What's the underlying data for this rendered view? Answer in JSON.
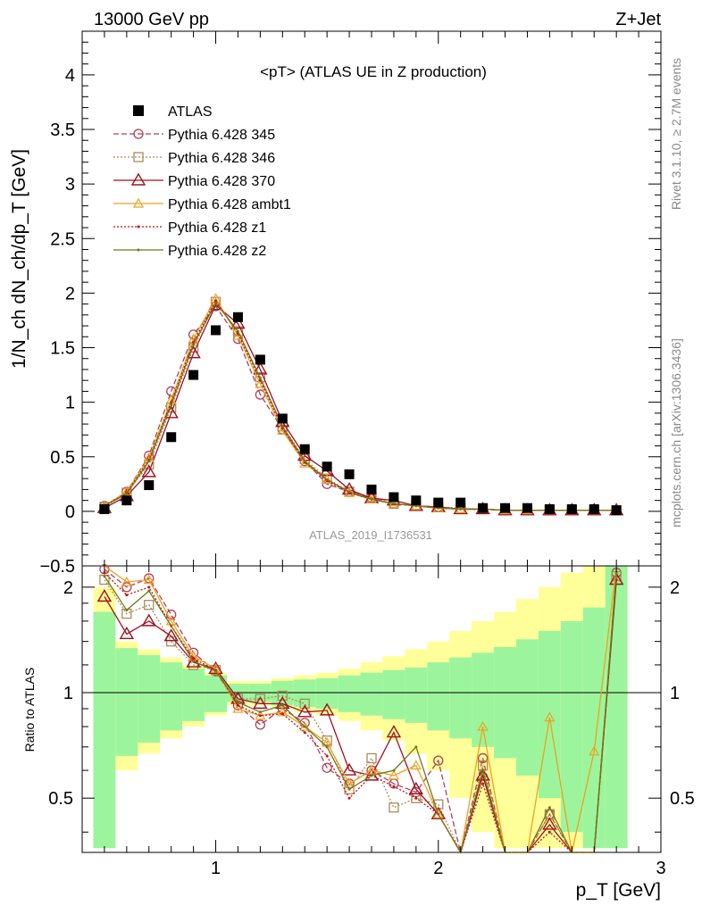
{
  "header": {
    "left": "13000 GeV pp",
    "right": "Z+Jet"
  },
  "side_labels": {
    "rivet": "Rivet 3.1.10, ≥ 2.7M events",
    "mcplots": "mcplots.cern.ch [arXiv:1306.3436]"
  },
  "watermark": "ATLAS_2019_I1736531",
  "colors": {
    "atlas": "#000000",
    "p345": "#b0405a",
    "p346": "#a88c5a",
    "p370": "#a01020",
    "ambt1": "#f0a020",
    "z1": "#c81010",
    "z2": "#707818",
    "band_inner": "#9cf59c",
    "band_outer": "#ffff99"
  },
  "chart_data": {
    "type": "line",
    "title": "<pT> (ATLAS UE in Z production)",
    "xlabel": "p_T [GeV]",
    "ylabel": "1/N_ch dN_ch/dp_T [GeV]",
    "ratio_ylabel": "Ratio to ATLAS",
    "xlim": [
      0.4,
      3.0
    ],
    "ylim": [
      -0.5,
      4.4
    ],
    "ratio_ylim": [
      0.35,
      2.3
    ],
    "xticks": [
      "1",
      "2",
      "3"
    ],
    "yticks": [
      "−0.5",
      "0",
      "0.5",
      "1",
      "1.5",
      "2",
      "2.5",
      "3",
      "3.5",
      "4"
    ],
    "ratio_yticks": [
      "0.5",
      "1",
      "2"
    ],
    "legend_position": "top-left",
    "x": [
      0.5,
      0.6,
      0.7,
      0.8,
      0.9,
      1.0,
      1.1,
      1.2,
      1.3,
      1.4,
      1.5,
      1.6,
      1.7,
      1.8,
      1.9,
      2.0,
      2.1,
      2.2,
      2.3,
      2.4,
      2.5,
      2.6,
      2.7,
      2.8
    ],
    "series": [
      {
        "name": "ATLAS",
        "values": [
          0.02,
          0.1,
          0.24,
          0.68,
          1.25,
          1.66,
          1.78,
          1.39,
          0.85,
          0.57,
          0.41,
          0.34,
          0.2,
          0.13,
          0.1,
          0.08,
          0.08,
          0.03,
          0.03,
          0.03,
          0.02,
          0.02,
          0.02,
          0.01
        ]
      },
      {
        "name": "Pythia 6.428 345",
        "values": [
          0.05,
          0.18,
          0.51,
          1.1,
          1.62,
          1.88,
          1.58,
          1.07,
          0.75,
          0.46,
          0.25,
          0.18,
          0.12,
          0.07,
          0.05,
          0.04,
          0.02,
          0.02,
          0.01,
          0.01,
          0.01,
          0.01,
          0.01,
          0.01
        ]
      },
      {
        "name": "Pythia 6.428 346",
        "values": [
          0.04,
          0.17,
          0.43,
          0.95,
          1.5,
          1.92,
          1.65,
          1.23,
          0.78,
          0.48,
          0.3,
          0.18,
          0.13,
          0.07,
          0.05,
          0.04,
          0.03,
          0.02,
          0.01,
          0.01,
          0.01,
          0.01,
          0.01,
          0.01
        ]
      },
      {
        "name": "Pythia 6.428 370",
        "values": [
          0.03,
          0.14,
          0.36,
          0.9,
          1.45,
          1.89,
          1.72,
          1.3,
          0.82,
          0.51,
          0.37,
          0.2,
          0.12,
          0.1,
          0.05,
          0.04,
          0.02,
          0.02,
          0.01,
          0.01,
          0.01,
          0.01,
          0.01,
          0.01
        ]
      },
      {
        "name": "Pythia 6.428 ambt1",
        "values": [
          0.05,
          0.18,
          0.49,
          1.02,
          1.58,
          1.95,
          1.61,
          1.17,
          0.74,
          0.44,
          0.29,
          0.17,
          0.11,
          0.07,
          0.05,
          0.03,
          0.02,
          0.02,
          0.01,
          0.01,
          0.01,
          0.01,
          0.01,
          0.01
        ]
      },
      {
        "name": "Pythia 6.428 z1",
        "values": [
          0.05,
          0.17,
          0.47,
          1.0,
          1.55,
          1.93,
          1.63,
          1.2,
          0.76,
          0.45,
          0.28,
          0.17,
          0.11,
          0.07,
          0.05,
          0.03,
          0.02,
          0.02,
          0.01,
          0.01,
          0.01,
          0.01,
          0.01,
          0.01
        ]
      },
      {
        "name": "Pythia 6.428 z2",
        "values": [
          0.05,
          0.16,
          0.46,
          0.98,
          1.53,
          1.91,
          1.65,
          1.22,
          0.78,
          0.46,
          0.29,
          0.18,
          0.11,
          0.07,
          0.05,
          0.03,
          0.02,
          0.02,
          0.01,
          0.01,
          0.01,
          0.01,
          0.01,
          0.01
        ]
      }
    ],
    "ratio_series": [
      {
        "name": "Pythia 6.428 345",
        "values": [
          2.25,
          2.0,
          2.12,
          1.67,
          1.3,
          1.15,
          0.92,
          0.81,
          0.9,
          0.82,
          0.61,
          0.55,
          0.6,
          0.55,
          0.52,
          0.64,
          0.3,
          0.65,
          0.3,
          0.3,
          0.45,
          0.3,
          0.3,
          2.2
        ]
      },
      {
        "name": "Pythia 6.428 346",
        "values": [
          2.1,
          1.68,
          1.78,
          1.4,
          1.2,
          1.16,
          0.96,
          0.96,
          0.98,
          0.93,
          0.73,
          0.53,
          0.65,
          0.47,
          0.5,
          0.48,
          0.3,
          0.62,
          0.3,
          0.3,
          0.45,
          0.3,
          0.3,
          2.15
        ]
      },
      {
        "name": "Pythia 6.428 370",
        "values": [
          1.88,
          1.47,
          1.6,
          1.45,
          1.22,
          1.17,
          0.96,
          0.93,
          0.93,
          0.88,
          0.89,
          0.6,
          0.58,
          0.77,
          0.53,
          0.45,
          0.3,
          0.58,
          0.3,
          0.3,
          0.42,
          0.3,
          0.3,
          2.1
        ]
      },
      {
        "name": "Pythia 6.428 ambt1",
        "values": [
          2.3,
          2.07,
          2.1,
          1.6,
          1.27,
          1.17,
          0.9,
          0.86,
          0.88,
          0.8,
          0.72,
          0.55,
          0.6,
          0.58,
          0.62,
          0.45,
          0.3,
          0.8,
          0.3,
          0.3,
          0.85,
          0.3,
          0.68,
          2.3
        ]
      },
      {
        "name": "Pythia 6.428 z1",
        "values": [
          2.2,
          1.9,
          2.0,
          1.55,
          1.25,
          1.16,
          0.92,
          0.86,
          0.87,
          0.77,
          0.66,
          0.5,
          0.58,
          0.54,
          0.5,
          0.45,
          0.3,
          0.55,
          0.3,
          0.3,
          0.4,
          0.3,
          0.3,
          2.1
        ]
      },
      {
        "name": "Pythia 6.428 z2",
        "values": [
          2.15,
          1.72,
          1.95,
          1.55,
          1.23,
          1.15,
          0.94,
          0.88,
          0.92,
          0.8,
          0.7,
          0.53,
          0.58,
          0.6,
          0.7,
          0.45,
          0.3,
          0.6,
          0.3,
          0.3,
          0.47,
          0.3,
          0.3,
          2.2
        ]
      }
    ],
    "ratio_band": {
      "x_edges": [
        0.45,
        0.55,
        0.65,
        0.75,
        0.85,
        0.95,
        1.05,
        1.15,
        1.25,
        1.35,
        1.45,
        1.55,
        1.65,
        1.75,
        1.85,
        1.95,
        2.05,
        2.15,
        2.25,
        2.35,
        2.45,
        2.55,
        2.65,
        2.75,
        2.85
      ],
      "inner": [
        0.7,
        0.34,
        0.28,
        0.22,
        0.17,
        0.12,
        0.06,
        0.06,
        0.08,
        0.09,
        0.1,
        0.12,
        0.14,
        0.16,
        0.18,
        0.22,
        0.26,
        0.3,
        0.35,
        0.42,
        0.5,
        0.6,
        0.75,
        1.5
      ],
      "outer": [
        1.0,
        0.4,
        0.33,
        0.26,
        0.2,
        0.14,
        0.08,
        0.08,
        0.1,
        0.12,
        0.14,
        0.17,
        0.22,
        0.27,
        0.33,
        0.4,
        0.5,
        0.6,
        0.7,
        0.85,
        1.0,
        1.2,
        1.5,
        2.0
      ]
    }
  }
}
